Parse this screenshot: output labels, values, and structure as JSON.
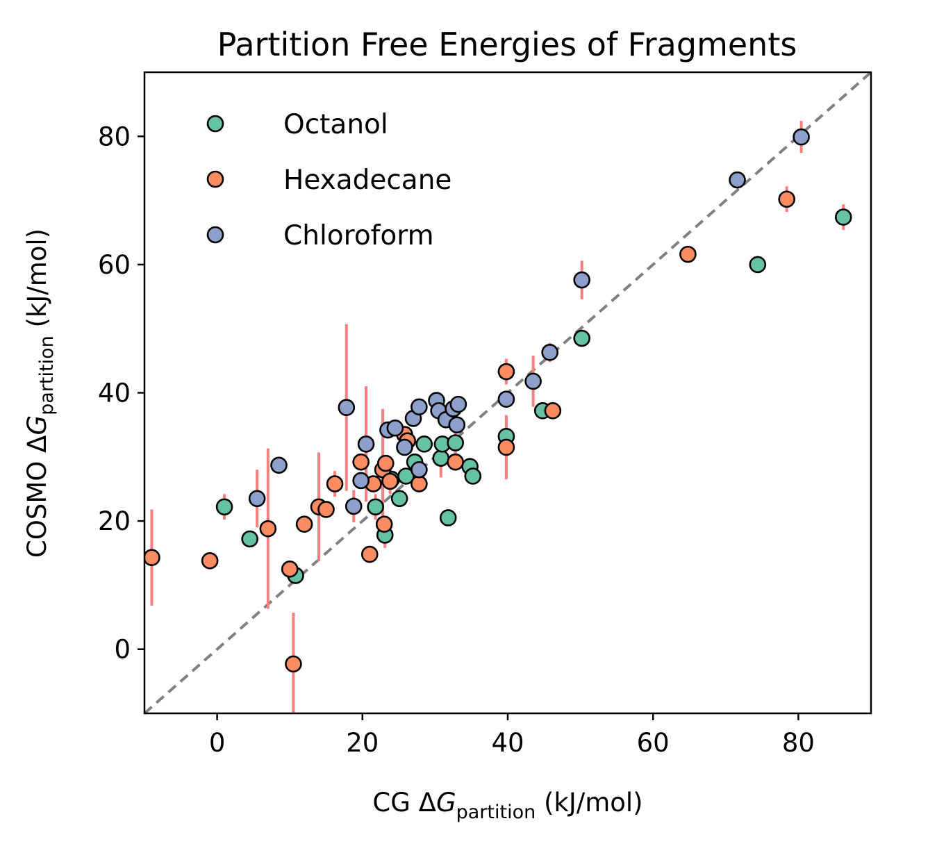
{
  "chart_data": {
    "type": "scatter",
    "title": "Partition Free Energies of Fragments",
    "xlabel": {
      "prefix": "CG Δ",
      "var": "G",
      "sub": "partition",
      "suffix": " (kJ/mol)"
    },
    "ylabel": {
      "prefix": "COSMO Δ",
      "var": "G",
      "sub": "partition",
      "suffix": " (kJ/mol)"
    },
    "xlim": [
      -10,
      90
    ],
    "ylim": [
      -10,
      90
    ],
    "xticks": [
      0,
      20,
      40,
      60,
      80
    ],
    "yticks": [
      0,
      20,
      40,
      60,
      80
    ],
    "grid": false,
    "legend_position": "top-left",
    "reference_line": {
      "style": "dashed",
      "color": "#808080",
      "from": [
        -10,
        -10
      ],
      "to": [
        90,
        90
      ]
    },
    "errorbar_color": "#f77f7f",
    "series": [
      {
        "name": "Octanol",
        "color": "#66c2a5",
        "points": [
          {
            "x": 1.0,
            "y": 22.2,
            "err": 2.0
          },
          {
            "x": 4.5,
            "y": 17.2,
            "err": 0
          },
          {
            "x": 10.8,
            "y": 11.5,
            "err": 0
          },
          {
            "x": 21.8,
            "y": 22.2,
            "err": 2.0
          },
          {
            "x": 23.1,
            "y": 17.8,
            "err": 2.0
          },
          {
            "x": 24.0,
            "y": 26.5,
            "err": 0
          },
          {
            "x": 25.1,
            "y": 23.5,
            "err": 0
          },
          {
            "x": 26.0,
            "y": 27.0,
            "err": 0
          },
          {
            "x": 27.2,
            "y": 29.2,
            "err": 0
          },
          {
            "x": 28.5,
            "y": 32.0,
            "err": 0
          },
          {
            "x": 30.8,
            "y": 29.8,
            "err": 3.0
          },
          {
            "x": 31.0,
            "y": 32.0,
            "err": 0
          },
          {
            "x": 31.8,
            "y": 20.5,
            "err": 0
          },
          {
            "x": 32.8,
            "y": 32.2,
            "err": 2.0
          },
          {
            "x": 34.8,
            "y": 28.5,
            "err": 0
          },
          {
            "x": 35.2,
            "y": 27.0,
            "err": 0
          },
          {
            "x": 39.8,
            "y": 33.2,
            "err": 2.0
          },
          {
            "x": 44.8,
            "y": 37.2,
            "err": 0
          },
          {
            "x": 50.2,
            "y": 48.5,
            "err": 0
          },
          {
            "x": 74.4,
            "y": 60.0,
            "err": 0
          },
          {
            "x": 86.2,
            "y": 67.4,
            "err": 2.0
          }
        ]
      },
      {
        "name": "Hexadecane",
        "color": "#fc8d62",
        "points": [
          {
            "x": -9.0,
            "y": 14.3,
            "err": 7.5
          },
          {
            "x": -1.0,
            "y": 13.8,
            "err": 0
          },
          {
            "x": 7.0,
            "y": 18.8,
            "err": 12.5
          },
          {
            "x": 10.0,
            "y": 12.5,
            "err": 0
          },
          {
            "x": 10.5,
            "y": -2.3,
            "err": 8.0
          },
          {
            "x": 12.0,
            "y": 19.5,
            "err": 0
          },
          {
            "x": 14.0,
            "y": 22.2,
            "err": 8.5
          },
          {
            "x": 15.0,
            "y": 21.8,
            "err": 0
          },
          {
            "x": 16.2,
            "y": 25.8,
            "err": 2.0
          },
          {
            "x": 19.8,
            "y": 29.2,
            "err": 0
          },
          {
            "x": 21.0,
            "y": 14.8,
            "err": 0
          },
          {
            "x": 21.5,
            "y": 25.8,
            "err": 0
          },
          {
            "x": 22.8,
            "y": 28.0,
            "err": 9.5
          },
          {
            "x": 23.0,
            "y": 19.5,
            "err": 0
          },
          {
            "x": 23.2,
            "y": 29.0,
            "err": 0
          },
          {
            "x": 23.8,
            "y": 26.2,
            "err": 2.0
          },
          {
            "x": 25.8,
            "y": 33.5,
            "err": 0
          },
          {
            "x": 26.2,
            "y": 32.5,
            "err": 0
          },
          {
            "x": 27.8,
            "y": 25.8,
            "err": 0
          },
          {
            "x": 32.8,
            "y": 29.2,
            "err": 0
          },
          {
            "x": 39.8,
            "y": 43.3,
            "err": 2.0
          },
          {
            "x": 39.8,
            "y": 31.5,
            "err": 5.0
          },
          {
            "x": 46.2,
            "y": 37.2,
            "err": 0
          },
          {
            "x": 64.8,
            "y": 61.6,
            "err": 0
          },
          {
            "x": 78.4,
            "y": 70.2,
            "err": 2.0
          }
        ]
      },
      {
        "name": "Chloroform",
        "color": "#8da0cb",
        "points": [
          {
            "x": 5.5,
            "y": 23.5,
            "err": 4.5
          },
          {
            "x": 8.5,
            "y": 28.7,
            "err": 0
          },
          {
            "x": 17.8,
            "y": 37.7,
            "err": 13.0
          },
          {
            "x": 18.8,
            "y": 22.3,
            "err": 2.5
          },
          {
            "x": 19.8,
            "y": 26.3,
            "err": 0
          },
          {
            "x": 20.5,
            "y": 32.0,
            "err": 9.0
          },
          {
            "x": 23.5,
            "y": 34.2,
            "err": 0
          },
          {
            "x": 24.5,
            "y": 34.5,
            "err": 0
          },
          {
            "x": 25.8,
            "y": 31.5,
            "err": 0
          },
          {
            "x": 27.0,
            "y": 36.0,
            "err": 0
          },
          {
            "x": 27.8,
            "y": 37.8,
            "err": 0
          },
          {
            "x": 27.8,
            "y": 28.0,
            "err": 0
          },
          {
            "x": 30.2,
            "y": 38.8,
            "err": 0
          },
          {
            "x": 30.5,
            "y": 37.2,
            "err": 0
          },
          {
            "x": 31.5,
            "y": 35.8,
            "err": 0
          },
          {
            "x": 32.5,
            "y": 37.5,
            "err": 0
          },
          {
            "x": 33.0,
            "y": 35.0,
            "err": 0
          },
          {
            "x": 33.2,
            "y": 38.2,
            "err": 0
          },
          {
            "x": 39.8,
            "y": 39.0,
            "err": 0
          },
          {
            "x": 43.5,
            "y": 41.8,
            "err": 4.0
          },
          {
            "x": 45.8,
            "y": 46.3,
            "err": 1.5
          },
          {
            "x": 50.2,
            "y": 57.6,
            "err": 3.0
          },
          {
            "x": 71.6,
            "y": 73.2,
            "err": 0
          },
          {
            "x": 80.4,
            "y": 79.9,
            "err": 2.5
          }
        ]
      }
    ]
  }
}
